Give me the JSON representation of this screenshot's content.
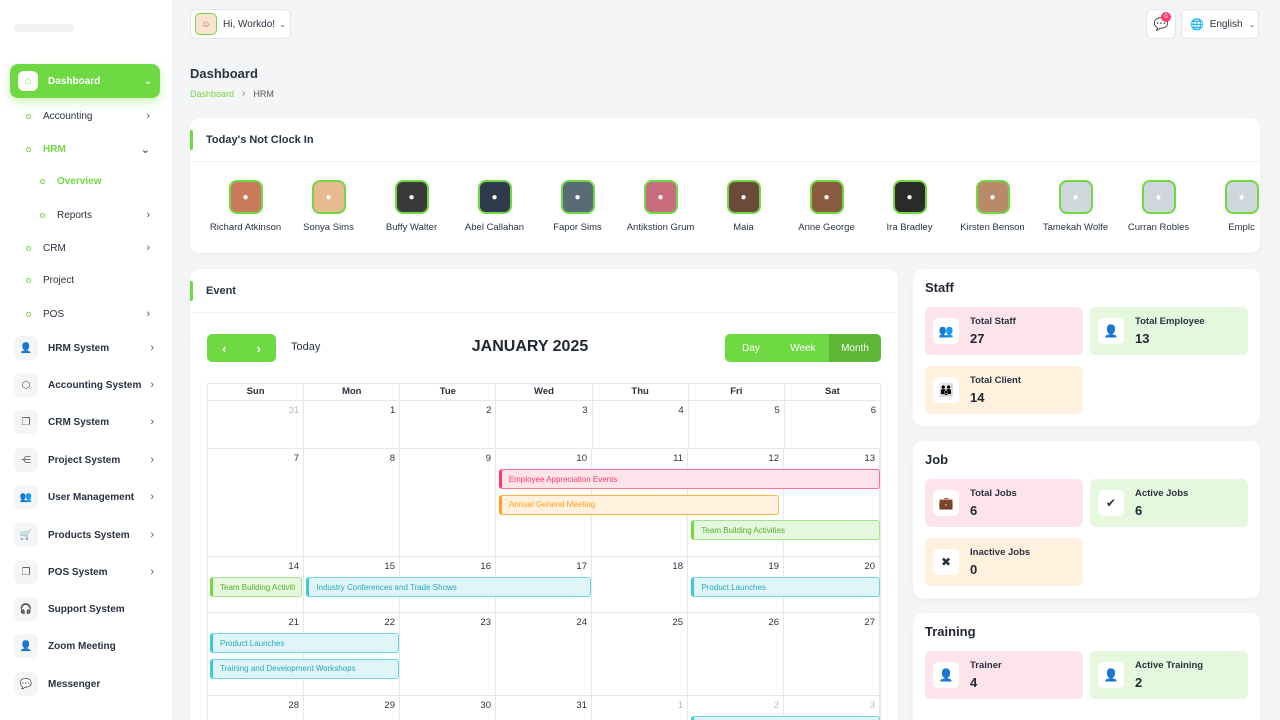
{
  "header": {
    "greeting": "Hi, Workdo!",
    "notification_count": "0",
    "language": "English"
  },
  "sidebar": {
    "dashboard": "Dashboard",
    "items": [
      {
        "label": "Accounting",
        "icon": "accounting-icon"
      },
      {
        "label": "HRM"
      },
      {
        "label": "Overview"
      },
      {
        "label": "Reports"
      },
      {
        "label": "CRM"
      },
      {
        "label": "Project"
      },
      {
        "label": "POS"
      }
    ],
    "systems": [
      {
        "label": "HRM System",
        "icon": "user-icon"
      },
      {
        "label": "Accounting System",
        "icon": "box-icon"
      },
      {
        "label": "CRM System",
        "icon": "copy-icon"
      },
      {
        "label": "Project System",
        "icon": "share-icon"
      },
      {
        "label": "User Management",
        "icon": "users-icon"
      },
      {
        "label": "Products System",
        "icon": "cart-icon"
      },
      {
        "label": "POS System",
        "icon": "copy-icon"
      },
      {
        "label": "Support System",
        "icon": "headset-icon"
      },
      {
        "label": "Zoom Meeting",
        "icon": "user-check-icon"
      },
      {
        "label": "Messenger",
        "icon": "chat-icon"
      }
    ]
  },
  "page": {
    "title": "Dashboard",
    "breadcrumb": [
      "Dashboard",
      "HRM"
    ]
  },
  "clock_in": {
    "title": "Today's Not Clock In",
    "people": [
      {
        "name": "Richard Atkinson",
        "color": "#c87a5a"
      },
      {
        "name": "Sonya Sims",
        "color": "#e9b98f"
      },
      {
        "name": "Buffy Walter",
        "color": "#3a3a3a"
      },
      {
        "name": "Abel Callahan",
        "color": "#2f3b4c"
      },
      {
        "name": "Fapor Sims",
        "color": "#5a6b78"
      },
      {
        "name": "Antikstion Grum",
        "color": "#c76b7d"
      },
      {
        "name": "Maia",
        "color": "#6b4a3a"
      },
      {
        "name": "Anne George",
        "color": "#8a5a3e"
      },
      {
        "name": "Ira Bradley",
        "color": "#2a2a2a"
      },
      {
        "name": "Kirsten Benson",
        "color": "#b98a6a"
      },
      {
        "name": "Tamekah Wolfe",
        "color": "#cfd6dc"
      },
      {
        "name": "Curran Robles",
        "color": "#cfd6dc"
      },
      {
        "name": "Emplc",
        "color": "#cfd6dc"
      }
    ]
  },
  "event": {
    "title": "Event",
    "today_label": "Today",
    "month_title": "JANUARY 2025",
    "views": [
      "Day",
      "Week",
      "Month"
    ],
    "active_view": "Month",
    "weekdays": [
      "Sun",
      "Mon",
      "Tue",
      "Wed",
      "Thu",
      "Fri",
      "Sat"
    ],
    "weeks": [
      {
        "days": [
          "31",
          "1",
          "2",
          "3",
          "4",
          "5",
          "6"
        ],
        "muted": [
          0
        ]
      },
      {
        "days": [
          "7",
          "8",
          "9",
          "10",
          "11",
          "12",
          "13"
        ],
        "muted": []
      },
      {
        "days": [
          "14",
          "15",
          "16",
          "17",
          "18",
          "19",
          "20"
        ],
        "muted": []
      },
      {
        "days": [
          "21",
          "22",
          "23",
          "24",
          "25",
          "26",
          "27"
        ],
        "muted": []
      },
      {
        "days": [
          "28",
          "29",
          "30",
          "31",
          "1",
          "2",
          "3"
        ],
        "muted": [
          4,
          5,
          6
        ]
      }
    ],
    "events": [
      {
        "title": "Employee Appreciation Events",
        "week": 1,
        "start": 3,
        "end": 6,
        "lane": 0,
        "color": "pink"
      },
      {
        "title": "Annual General Meeting",
        "week": 1,
        "start": 3,
        "end": 5,
        "lane": 1,
        "color": "orange",
        "endFrac": 0.95
      },
      {
        "title": "Team Building Activities",
        "week": 1,
        "start": 5,
        "end": 6,
        "lane": 2,
        "color": "green"
      },
      {
        "title": "Team Building Activiti",
        "week": 2,
        "start": 0,
        "end": 0,
        "lane": 0,
        "color": "green"
      },
      {
        "title": "Industry Conferences and Trade Shows",
        "week": 2,
        "start": 1,
        "end": 3,
        "lane": 0,
        "color": "cyan"
      },
      {
        "title": "Product Launches",
        "week": 2,
        "start": 5,
        "end": 6,
        "lane": 0,
        "color": "cyan"
      },
      {
        "title": "Product Launches",
        "week": 3,
        "start": 0,
        "end": 1,
        "lane": 0,
        "color": "cyan"
      },
      {
        "title": "Training and Development Workshops",
        "week": 3,
        "start": 0,
        "end": 1,
        "lane": 1,
        "color": "cyan"
      },
      {
        "title": "",
        "week": 4,
        "start": 5,
        "end": 6,
        "lane": 0,
        "color": "cyan"
      }
    ]
  },
  "staff": {
    "title": "Staff",
    "tiles": [
      {
        "label": "Total Staff",
        "value": "27",
        "tone": "pink",
        "icon": "users-icon",
        "glyph": "👥"
      },
      {
        "label": "Total Employee",
        "value": "13",
        "tone": "green",
        "icon": "employee-icon",
        "glyph": "👤"
      },
      {
        "label": "Total Client",
        "value": "14",
        "tone": "peach",
        "icon": "clients-icon",
        "glyph": "👪"
      }
    ]
  },
  "job": {
    "title": "Job",
    "tiles": [
      {
        "label": "Total Jobs",
        "value": "6",
        "tone": "pink",
        "icon": "briefcase-icon",
        "glyph": "💼"
      },
      {
        "label": "Active Jobs",
        "value": "6",
        "tone": "green",
        "icon": "check-icon",
        "glyph": "✔"
      },
      {
        "label": "Inactive Jobs",
        "value": "0",
        "tone": "peach",
        "icon": "cross-icon",
        "glyph": "✖"
      }
    ]
  },
  "training": {
    "title": "Training",
    "tiles": [
      {
        "label": "Trainer",
        "value": "4",
        "tone": "pink",
        "icon": "trainer-icon",
        "glyph": "👤"
      },
      {
        "label": "Active Training",
        "value": "2",
        "tone": "green",
        "icon": "training-icon",
        "glyph": "👤"
      }
    ]
  },
  "colors": {
    "accent": "#6fd943",
    "pink": "#ff3a6e",
    "orange": "#ffa21d",
    "cyan": "#3ec9d6"
  }
}
